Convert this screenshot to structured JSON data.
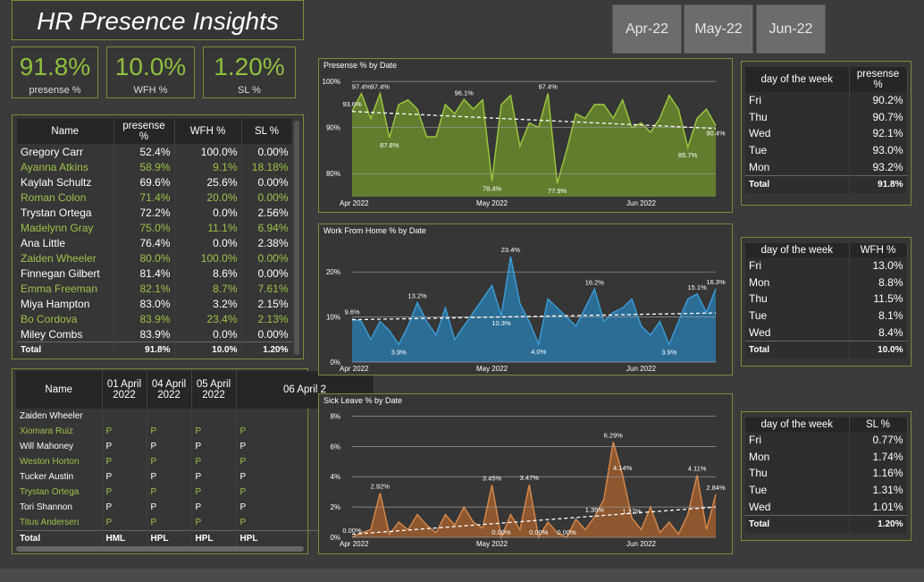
{
  "header": {
    "title": "HR Presence Insights"
  },
  "kpis": [
    {
      "value": "91.8%",
      "label": "presense %"
    },
    {
      "value": "10.0%",
      "label": "WFH %"
    },
    {
      "value": "1.20%",
      "label": "SL %"
    }
  ],
  "months": [
    "Apr-22",
    "May-22",
    "Jun-22"
  ],
  "name_table": {
    "columns": [
      "Name",
      "presense %",
      "WFH %",
      "SL %"
    ],
    "rows": [
      [
        "Gregory Carr",
        "52.4%",
        "100.0%",
        "0.00%"
      ],
      [
        "Ayanna Atkins",
        "58.9%",
        "9.1%",
        "18.18%"
      ],
      [
        "Kaylah Schultz",
        "69.6%",
        "25.6%",
        "0.00%"
      ],
      [
        "Roman Colon",
        "71.4%",
        "20.0%",
        "0.00%"
      ],
      [
        "Trystan Ortega",
        "72.2%",
        "0.0%",
        "2.56%"
      ],
      [
        "Madelynn Gray",
        "75.0%",
        "11.1%",
        "6.94%"
      ],
      [
        "Ana Little",
        "76.4%",
        "0.0%",
        "2.38%"
      ],
      [
        "Zaiden Wheeler",
        "80.0%",
        "100.0%",
        "0.00%"
      ],
      [
        "Finnegan Gilbert",
        "81.4%",
        "8.6%",
        "0.00%"
      ],
      [
        "Emma Freeman",
        "82.1%",
        "8.7%",
        "7.61%"
      ],
      [
        "Miya Hampton",
        "83.0%",
        "3.2%",
        "2.15%"
      ],
      [
        "Bo Cordova",
        "83.9%",
        "23.4%",
        "2.13%"
      ],
      [
        "Miley Combs",
        "83.9%",
        "0.0%",
        "0.00%"
      ]
    ],
    "total": [
      "Total",
      "91.8%",
      "10.0%",
      "1.20%"
    ]
  },
  "attendance_table": {
    "columns": [
      "Name",
      "01 April 2022",
      "04 April 2022",
      "05 April 2022",
      "06 April 2"
    ],
    "rows": [
      [
        "Zaiden Wheeler"
      ],
      [
        "Xiomara Ruiz",
        "P",
        "P",
        "P",
        "P"
      ],
      [
        "Will Mahoney",
        "P",
        "P",
        "P",
        "P"
      ],
      [
        "Weston Horton",
        "P",
        "P",
        "P",
        "P"
      ],
      [
        "Tucker Austin",
        "P",
        "P",
        "P",
        "P"
      ],
      [
        "Trystan Ortega",
        "P",
        "P",
        "P",
        "P"
      ],
      [
        "Tori Shannon",
        "P",
        "P",
        "P",
        "P"
      ],
      [
        "Titus Andersen",
        "P",
        "P",
        "P",
        "P"
      ]
    ],
    "total": [
      "Total",
      "HML",
      "HPL",
      "HPL",
      "HPL"
    ]
  },
  "dow_tables": [
    {
      "columns": [
        "day of the week",
        "presense %"
      ],
      "rows": [
        [
          "Fri",
          "90.2%"
        ],
        [
          "Thu",
          "90.7%"
        ],
        [
          "Wed",
          "92.1%"
        ],
        [
          "Tue",
          "93.0%"
        ],
        [
          "Mon",
          "93.2%"
        ]
      ],
      "total": [
        "Total",
        "91.8%"
      ]
    },
    {
      "columns": [
        "day of the week",
        "WFH %"
      ],
      "rows": [
        [
          "Fri",
          "13.0%"
        ],
        [
          "Mon",
          "8.8%"
        ],
        [
          "Thu",
          "11.5%"
        ],
        [
          "Tue",
          "8.1%"
        ],
        [
          "Wed",
          "8.4%"
        ]
      ],
      "total": [
        "Total",
        "10.0%"
      ]
    },
    {
      "columns": [
        "day of the week",
        "SL %"
      ],
      "rows": [
        [
          "Fri",
          "0.77%"
        ],
        [
          "Mon",
          "1.74%"
        ],
        [
          "Thu",
          "1.16%"
        ],
        [
          "Tue",
          "1.31%"
        ],
        [
          "Wed",
          "1.01%"
        ]
      ],
      "total": [
        "Total",
        "1.20%"
      ]
    }
  ],
  "chart_data": [
    {
      "type": "area",
      "title": "Presense % by Date",
      "color": "#9bc53d",
      "fill": "#6b8a2e",
      "categories": [
        "Apr 2022",
        null,
        null,
        null,
        null,
        null,
        null,
        null,
        null,
        null,
        null,
        null,
        null,
        null,
        null,
        "May 2022",
        null,
        null,
        null,
        null,
        null,
        null,
        null,
        null,
        null,
        null,
        null,
        null,
        null,
        null,
        null,
        "Jun 2022",
        null,
        null,
        null,
        null,
        null,
        null,
        null,
        null
      ],
      "values": [
        93.6,
        97.4,
        92,
        97.4,
        87.8,
        95,
        96,
        94,
        88,
        88,
        95,
        93,
        96.1,
        94,
        96,
        78.4,
        95,
        97,
        86,
        91,
        90,
        97.4,
        77.9,
        85,
        93,
        92,
        95,
        95,
        92,
        96,
        90,
        91,
        89,
        92,
        97,
        94,
        85.7,
        92,
        94,
        90.4
      ],
      "value_labels": [
        "93.6%",
        "97.4%",
        null,
        "97.4%",
        "87.8%",
        null,
        null,
        null,
        null,
        null,
        null,
        null,
        "96.1%",
        null,
        null,
        "78.4%",
        null,
        null,
        null,
        null,
        null,
        "97.4%",
        "77.9%",
        null,
        null,
        null,
        null,
        null,
        null,
        null,
        null,
        null,
        null,
        null,
        null,
        null,
        "85.7%",
        null,
        null,
        "90.4%"
      ],
      "trendline": [
        93.5,
        89.8
      ],
      "ylim": [
        75,
        101
      ],
      "yticks": [
        {
          "value": 80,
          "label": "80%"
        },
        {
          "value": 90,
          "label": "90%"
        },
        {
          "value": 100,
          "label": "100%"
        }
      ],
      "grid": true
    },
    {
      "type": "area",
      "title": "Work From Home % by Date",
      "color": "#3a9bd5",
      "fill": "#2a77a6",
      "categories": [
        "Apr 2022",
        null,
        null,
        null,
        null,
        null,
        null,
        null,
        null,
        null,
        null,
        null,
        null,
        null,
        null,
        "May 2022",
        null,
        null,
        null,
        null,
        null,
        null,
        null,
        null,
        null,
        null,
        null,
        null,
        null,
        null,
        null,
        "Jun 2022",
        null,
        null,
        null,
        null,
        null,
        null,
        null,
        null
      ],
      "values": [
        9.6,
        9,
        5,
        9,
        7,
        3.9,
        8,
        13.2,
        9,
        6,
        12,
        5,
        8,
        11,
        14,
        17,
        10.3,
        23.4,
        13,
        9,
        4.0,
        14,
        12,
        10,
        8,
        12,
        16.2,
        9,
        11,
        12,
        14,
        8,
        6,
        9,
        3.9,
        9,
        14,
        15.1,
        11,
        16.3
      ],
      "value_labels": [
        "9.6%",
        null,
        null,
        null,
        null,
        "3.9%",
        null,
        "13.2%",
        null,
        null,
        null,
        null,
        null,
        null,
        null,
        null,
        "10.3%",
        "23.4%",
        null,
        null,
        "4.0%",
        null,
        null,
        null,
        null,
        null,
        "16.2%",
        null,
        null,
        null,
        null,
        null,
        null,
        null,
        "3.9%",
        null,
        null,
        "15.1%",
        null,
        "16.3%"
      ],
      "trendline": [
        9.4,
        10.9
      ],
      "ylim": [
        0,
        25
      ],
      "yticks": [
        {
          "value": 0,
          "label": "0%"
        },
        {
          "value": 10,
          "label": "10%"
        },
        {
          "value": 20,
          "label": "20%"
        }
      ],
      "grid": true
    },
    {
      "type": "area",
      "title": "Sick Leave % by Date",
      "color": "#d4874a",
      "fill": "#9c5d2e",
      "categories": [
        "Apr 2022",
        null,
        null,
        null,
        null,
        null,
        null,
        null,
        null,
        null,
        null,
        null,
        null,
        null,
        null,
        "May 2022",
        null,
        null,
        null,
        null,
        null,
        null,
        null,
        null,
        null,
        null,
        null,
        null,
        null,
        null,
        null,
        "Jun 2022",
        null,
        null,
        null,
        null,
        null,
        null,
        null,
        null
      ],
      "values": [
        0,
        0.3,
        0.5,
        2.92,
        0.2,
        1.0,
        0.5,
        1.5,
        0.8,
        0.3,
        1.5,
        0.8,
        2.0,
        1.0,
        0.6,
        3.45,
        0,
        1.5,
        0.5,
        3.47,
        0,
        1.0,
        0.3,
        0,
        1.2,
        0.5,
        1.35,
        2.5,
        6.29,
        4.14,
        1.27,
        0.5,
        2.0,
        0.3,
        1.0,
        0.2,
        1.5,
        4.11,
        0.5,
        2.84
      ],
      "value_labels": [
        "0.00%",
        null,
        null,
        "2.92%",
        null,
        null,
        null,
        null,
        null,
        null,
        null,
        null,
        null,
        null,
        null,
        "3.45%",
        "0.00%",
        null,
        null,
        "3.47%",
        "0.00%",
        null,
        null,
        "0.00%",
        null,
        null,
        "1.35%",
        null,
        "6.29%",
        "4.14%",
        "1.27%",
        null,
        null,
        null,
        null,
        null,
        null,
        "4.11%",
        null,
        "2.84%"
      ],
      "trendline": [
        0.2,
        2.0
      ],
      "ylim": [
        0,
        8.5
      ],
      "yticks": [
        {
          "value": 0,
          "label": "0%"
        },
        {
          "value": 2,
          "label": "2%"
        },
        {
          "value": 4,
          "label": "4%"
        },
        {
          "value": 6,
          "label": "6%"
        },
        {
          "value": 8,
          "label": "8%"
        }
      ],
      "grid": true
    }
  ]
}
